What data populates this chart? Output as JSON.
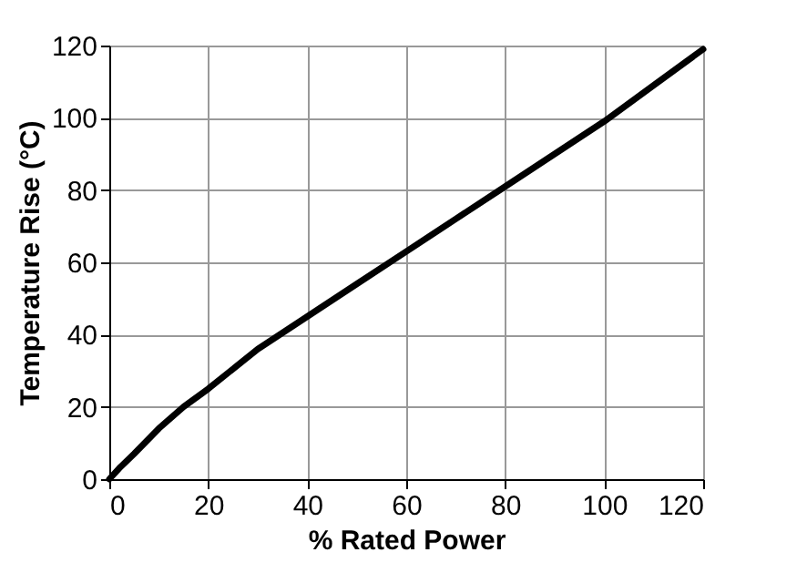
{
  "chart_data": {
    "type": "line",
    "xlabel": "% Rated Power",
    "ylabel": "Temperature Rise (°C)",
    "x": [
      0,
      2,
      5,
      10,
      15,
      20,
      30,
      40,
      50,
      60,
      70,
      80,
      90,
      100,
      110,
      120
    ],
    "series": [
      {
        "color": "#000000",
        "values": [
          0,
          3,
          7,
          14,
          20,
          25,
          36,
          45,
          54,
          63,
          72,
          81,
          90,
          99,
          109,
          119
        ]
      }
    ],
    "xlim": [
      0,
      120
    ],
    "xticks": [
      0,
      20,
      40,
      60,
      80,
      100,
      120
    ],
    "ylim": [
      0,
      120
    ],
    "yticks": [
      0,
      20,
      40,
      60,
      80,
      100,
      120
    ],
    "grid": true,
    "legend": false,
    "marker": "none",
    "line_style": "solid"
  }
}
